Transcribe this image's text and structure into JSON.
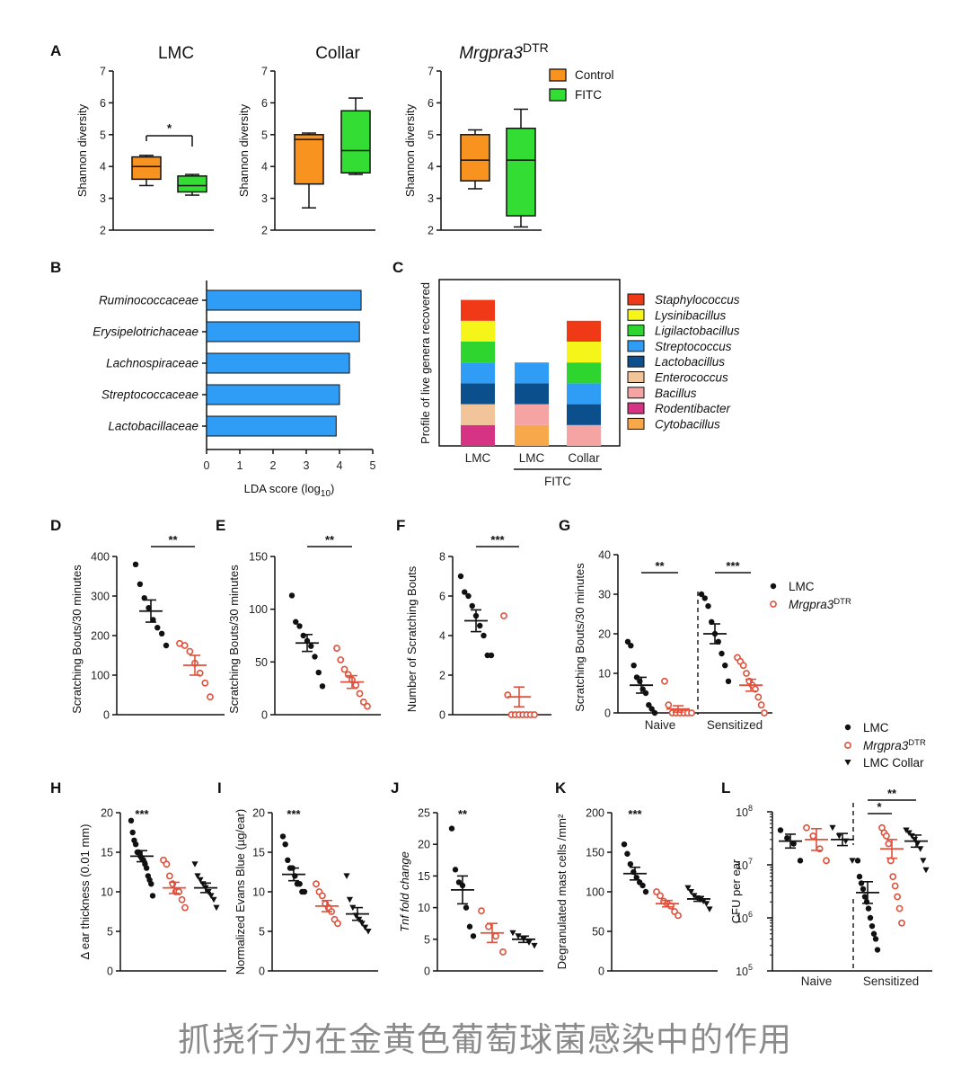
{
  "caption": "抓挠行为在金黄色葡萄球菌感染中的作用",
  "colors": {
    "control": "#f7931e",
    "fitc": "#33dd33",
    "lda_bar": "#2f9df5",
    "lmc": "#111111",
    "mrgpra3": "#e0503a"
  },
  "chart_data": [
    {
      "panel": "A",
      "type": "box",
      "title": "LMC",
      "ylabel": "Shannon diversity",
      "ylim": [
        2,
        7
      ],
      "yticks": [
        "2",
        "3",
        "4",
        "5",
        "6",
        "7"
      ],
      "series": [
        {
          "name": "Control",
          "min": 3.4,
          "q1": 3.6,
          "median": 4.0,
          "q3": 4.3,
          "max": 4.35
        },
        {
          "name": "FITC",
          "min": 3.1,
          "q1": 3.2,
          "median": 3.4,
          "q3": 3.7,
          "max": 3.75
        }
      ],
      "significance": "*"
    },
    {
      "panel": "A",
      "type": "box",
      "title": "Collar",
      "ylabel": "Shannon diversity",
      "ylim": [
        2,
        7
      ],
      "yticks": [
        "2",
        "3",
        "4",
        "5",
        "6",
        "7"
      ],
      "series": [
        {
          "name": "Control",
          "min": 2.7,
          "q1": 3.45,
          "median": 4.85,
          "q3": 5.0,
          "max": 5.05
        },
        {
          "name": "FITC",
          "min": 3.75,
          "q1": 3.8,
          "median": 4.5,
          "q3": 5.75,
          "max": 6.15
        }
      ]
    },
    {
      "panel": "A",
      "type": "box",
      "title": "Mrgpra3",
      "title_sup": "DTR",
      "ylabel": "Shannon diversity",
      "ylim": [
        2,
        7
      ],
      "yticks": [
        "2",
        "3",
        "4",
        "5",
        "6",
        "7"
      ],
      "series": [
        {
          "name": "Control",
          "min": 3.3,
          "q1": 3.55,
          "median": 4.2,
          "q3": 5.0,
          "max": 5.15
        },
        {
          "name": "FITC",
          "min": 2.1,
          "q1": 2.45,
          "median": 4.2,
          "q3": 5.2,
          "max": 5.8
        }
      ],
      "legend": [
        "Control",
        "FITC"
      ]
    },
    {
      "panel": "B",
      "type": "bar",
      "orientation": "horizontal",
      "categories": [
        "Ruminococcaceae",
        "Erysipelotrichaceae",
        "Lachnospiraceae",
        "Streptococcaceae",
        "Lactobacillaceae"
      ],
      "values": [
        4.65,
        4.6,
        4.3,
        4.0,
        3.9
      ],
      "xlabel": "LDA score (log10)",
      "xlim": [
        0,
        5
      ],
      "xticks": [
        "0",
        "1",
        "2",
        "3",
        "4",
        "5"
      ]
    },
    {
      "panel": "C",
      "type": "bar",
      "stacked": true,
      "ylabel": "Profile of live genera recovered",
      "categories": [
        "LMC",
        "LMC",
        "Collar"
      ],
      "group_label": "FITC",
      "genera": [
        "Staphylococcus",
        "Lysinibacillus",
        "Ligilactobacillus",
        "Streptococcus",
        "Lactobacillus",
        "Enterococcus",
        "Bacillus",
        "Rodentibacter",
        "Cytobacillus"
      ],
      "genus_colors": [
        "#f03a17",
        "#f5f51a",
        "#2fd52f",
        "#2f9df5",
        "#0b4f8c",
        "#f2c49a",
        "#f5a3a3",
        "#d63384",
        "#f7a84a"
      ],
      "stacks": [
        [
          "Rodentibacter",
          "Enterococcus",
          "Lactobacillus",
          "Streptococcus",
          "Ligilactobacillus",
          "Lysinibacillus",
          "Staphylococcus"
        ],
        [
          "Cytobacillus",
          "Bacillus",
          "Lactobacillus",
          "Streptococcus"
        ],
        [
          "Bacillus",
          "Lactobacillus",
          "Streptococcus",
          "Ligilactobacillus",
          "Lysinibacillus",
          "Staphylococcus"
        ]
      ]
    },
    {
      "panel": "D",
      "type": "scatter",
      "ylabel": "Scratching Bouts/30 minutes",
      "ylim": [
        0,
        400
      ],
      "yticks": [
        "0",
        "100",
        "200",
        "300",
        "400"
      ],
      "groups": [
        {
          "name": "LMC",
          "mean": 262,
          "sem": 28,
          "values": [
            380,
            330,
            295,
            270,
            240,
            220,
            205,
            175
          ]
        },
        {
          "name": "Mrgpra3DTR",
          "mean": 125,
          "sem": 25,
          "values": [
            180,
            175,
            160,
            130,
            105,
            80,
            45
          ]
        }
      ],
      "significance": "**"
    },
    {
      "panel": "E",
      "type": "scatter",
      "ylabel": "Scratching Bouts/30 minutes",
      "ylim": [
        0,
        150
      ],
      "yticks": [
        "0",
        "50",
        "100",
        "150"
      ],
      "groups": [
        {
          "name": "LMC",
          "mean": 68,
          "sem": 8,
          "values": [
            113,
            88,
            84,
            75,
            70,
            65,
            55,
            40,
            27
          ]
        },
        {
          "name": "Mrgpra3DTR",
          "mean": 31,
          "sem": 6,
          "values": [
            63,
            52,
            43,
            38,
            33,
            28,
            20,
            12,
            8
          ]
        }
      ],
      "significance": "**"
    },
    {
      "panel": "F",
      "type": "scatter",
      "ylabel": "Number of Scratching Bouts",
      "ylim": [
        0,
        8
      ],
      "yticks": [
        "0",
        "2",
        "4",
        "6",
        "8"
      ],
      "groups": [
        {
          "name": "LMC",
          "mean": 4.75,
          "sem": 0.55,
          "values": [
            7,
            6.2,
            6,
            5.5,
            5,
            4.5,
            4,
            3,
            3
          ]
        },
        {
          "name": "Mrgpra3DTR",
          "mean": 0.9,
          "sem": 0.5,
          "values": [
            5,
            1,
            0,
            0,
            0,
            0,
            0,
            0,
            0
          ]
        }
      ],
      "significance": "***"
    },
    {
      "panel": "G",
      "type": "scatter",
      "ylabel": "Scratching Bouts/30 minutes",
      "ylim": [
        0,
        40
      ],
      "yticks": [
        "0",
        "10",
        "20",
        "30",
        "40"
      ],
      "categories": [
        "Naive",
        "Sensitized"
      ],
      "groups": [
        {
          "name": "LMC",
          "category": "Naive",
          "mean": 7,
          "sem": 2,
          "values": [
            18,
            17,
            12,
            9,
            8,
            6,
            5,
            2,
            1,
            0
          ]
        },
        {
          "name": "Mrgpra3DTR",
          "category": "Naive",
          "mean": 1,
          "sem": 0.8,
          "values": [
            8,
            2,
            0,
            0,
            0,
            0,
            0,
            0
          ]
        },
        {
          "name": "LMC",
          "category": "Sensitized",
          "mean": 20,
          "sem": 2.5,
          "values": [
            30,
            29,
            27,
            23,
            20,
            18,
            15,
            12,
            8
          ]
        },
        {
          "name": "Mrgpra3DTR",
          "category": "Sensitized",
          "mean": 7,
          "sem": 1.5,
          "values": [
            14,
            13,
            12,
            10,
            8,
            7,
            6,
            4,
            2,
            0
          ]
        }
      ],
      "significance": [
        "**",
        "***"
      ],
      "legend": [
        "LMC",
        "Mrgpra3DTR"
      ]
    },
    {
      "panel": "H",
      "type": "scatter",
      "ylabel": "Δ ear thickness (0.01 mm)",
      "ylim": [
        0,
        20
      ],
      "yticks": [
        "0",
        "5",
        "10",
        "15",
        "20"
      ],
      "groups": [
        {
          "name": "LMC",
          "mean": 14.5,
          "sem": 0.7,
          "values": [
            19,
            17.5,
            16.5,
            16,
            15,
            15,
            14.5,
            14.2,
            14,
            13.5,
            13,
            12,
            11.5,
            11,
            9.5
          ]
        },
        {
          "name": "Mrgpra3DTR",
          "mean": 10.5,
          "sem": 0.7,
          "values": [
            14,
            13.5,
            12,
            11,
            10,
            10,
            9,
            8
          ]
        },
        {
          "name": "LMC Collar",
          "mean": 10.5,
          "sem": 0.6,
          "values": [
            13.5,
            12,
            11.5,
            11,
            10.5,
            10,
            9.5,
            9,
            8
          ]
        }
      ],
      "significance": "***",
      "legend": [
        "LMC",
        "Mrgpra3DTR",
        "LMC Collar"
      ]
    },
    {
      "panel": "I",
      "type": "scatter",
      "ylabel": "Normalized Evans Blue (µg/ear)",
      "ylim": [
        0,
        20
      ],
      "yticks": [
        "0",
        "5",
        "10",
        "15",
        "20"
      ],
      "groups": [
        {
          "name": "LMC",
          "mean": 12.2,
          "sem": 0.8,
          "values": [
            17,
            16,
            14,
            13,
            13,
            12,
            11,
            11,
            10,
            10
          ]
        },
        {
          "name": "Mrgpra3DTR",
          "mean": 8.2,
          "sem": 0.7,
          "values": [
            11,
            10,
            9.5,
            8.5,
            8,
            7.5,
            6.5,
            6
          ]
        },
        {
          "name": "LMC Collar",
          "mean": 7.2,
          "sem": 0.8,
          "values": [
            12,
            9,
            8,
            7,
            6.5,
            6,
            5.5,
            5
          ]
        }
      ],
      "significance": "***"
    },
    {
      "panel": "J",
      "type": "scatter",
      "ylabel": "Tnf fold change",
      "ylim": [
        0,
        25
      ],
      "yticks": [
        "0",
        "5",
        "10",
        "15",
        "20",
        "25"
      ],
      "groups": [
        {
          "name": "LMC",
          "mean": 12.8,
          "sem": 2.2,
          "values": [
            22.5,
            16,
            14,
            13.5,
            10,
            7,
            5.5
          ]
        },
        {
          "name": "Mrgpra3DTR",
          "mean": 6,
          "sem": 1.5,
          "values": [
            9.5,
            7,
            5.5,
            3
          ]
        },
        {
          "name": "LMC Collar",
          "mean": 5,
          "sem": 0.5,
          "values": [
            6,
            5.5,
            5,
            4.5,
            4
          ]
        }
      ],
      "significance": "**"
    },
    {
      "panel": "K",
      "type": "scatter",
      "ylabel": "Degranulated mast cells /mm²",
      "ylim": [
        0,
        200
      ],
      "yticks": [
        "0",
        "50",
        "100",
        "150",
        "200"
      ],
      "groups": [
        {
          "name": "LMC",
          "mean": 123,
          "sem": 8,
          "values": [
            160,
            148,
            135,
            125,
            118,
            112,
            108,
            100
          ]
        },
        {
          "name": "Mrgpra3DTR",
          "mean": 85,
          "sem": 4,
          "values": [
            100,
            95,
            88,
            85,
            82,
            75,
            70
          ]
        },
        {
          "name": "LMC Collar",
          "mean": 91,
          "sem": 3,
          "values": [
            105,
            100,
            95,
            92,
            90,
            88,
            85,
            78
          ]
        }
      ],
      "significance": "***"
    },
    {
      "panel": "L",
      "type": "scatter",
      "yscale": "log",
      "ylabel": "CFU per ear",
      "ylim": [
        100000,
        100000000
      ],
      "yticks": [
        "10^5",
        "10^6",
        "10^7",
        "10^8"
      ],
      "categories": [
        "Naive",
        "Sensitized"
      ],
      "groups": [
        {
          "name": "LMC",
          "category": "Naive",
          "mean": 28000000,
          "sem_factor": 1.35,
          "values": [
            45000000,
            32000000,
            25000000,
            12000000
          ]
        },
        {
          "name": "Mrgpra3DTR",
          "category": "Naive",
          "mean": 30000000,
          "sem_factor": 1.6,
          "values": [
            50000000,
            35000000,
            20000000,
            12000000
          ]
        },
        {
          "name": "LMC Collar",
          "category": "Naive",
          "mean": 30000000,
          "sem_factor": 1.3,
          "values": [
            50000000,
            35000000,
            28000000,
            12000000
          ]
        },
        {
          "name": "LMC",
          "category": "Sensitized",
          "mean": 3000000,
          "sem_factor": 1.6,
          "values": [
            12000000,
            6000000,
            4500000,
            3500000,
            2500000,
            2000000,
            1500000,
            1000000,
            700000,
            500000,
            400000,
            250000
          ]
        },
        {
          "name": "Mrgpra3DTR",
          "category": "Sensitized",
          "mean": 20000000,
          "sem_factor": 1.5,
          "values": [
            50000000,
            40000000,
            35000000,
            25000000,
            12000000,
            6000000,
            4000000,
            2500000,
            1500000,
            800000
          ]
        },
        {
          "name": "LMC Collar",
          "category": "Sensitized",
          "mean": 28000000,
          "sem_factor": 1.3,
          "values": [
            45000000,
            40000000,
            35000000,
            30000000,
            25000000,
            20000000,
            12000000,
            8000000
          ]
        }
      ],
      "significance": [
        "*",
        "**"
      ]
    }
  ],
  "text": {
    "panels": [
      "A",
      "B",
      "C",
      "D",
      "E",
      "F",
      "G",
      "H",
      "I",
      "J",
      "K",
      "L"
    ],
    "fitc_group": "FITC",
    "legend_lmc": "LMC",
    "legend_mrg": "Mrgpra3",
    "legend_mrg_sup": "DTR",
    "legend_collar": "LMC Collar",
    "naive": "Naive",
    "sensitized": "Sensitized"
  }
}
